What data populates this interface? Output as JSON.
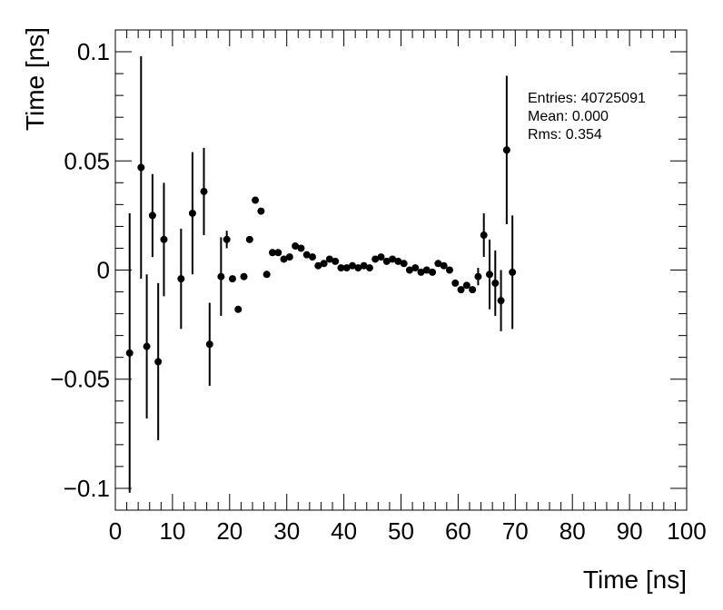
{
  "chart_data": {
    "type": "scatter",
    "title": "",
    "xlabel": "Time [ns]",
    "ylabel": "Time [ns]",
    "xlim": [
      0,
      100
    ],
    "ylim": [
      -0.11,
      0.11
    ],
    "grid": false,
    "x_ticks": [
      {
        "value": 0,
        "label": "0"
      },
      {
        "value": 10,
        "label": "10"
      },
      {
        "value": 20,
        "label": "20"
      },
      {
        "value": 30,
        "label": "30"
      },
      {
        "value": 40,
        "label": "40"
      },
      {
        "value": 50,
        "label": "50"
      },
      {
        "value": 60,
        "label": "60"
      },
      {
        "value": 70,
        "label": "70"
      },
      {
        "value": 80,
        "label": "80"
      },
      {
        "value": 90,
        "label": "90"
      },
      {
        "value": 100,
        "label": "100"
      }
    ],
    "y_ticks": [
      {
        "value": -0.1,
        "label": "−0.1"
      },
      {
        "value": -0.05,
        "label": "−0.05"
      },
      {
        "value": 0,
        "label": "0"
      },
      {
        "value": 0.05,
        "label": "0.05"
      },
      {
        "value": 0.1,
        "label": "0.1"
      }
    ],
    "stats": {
      "entries": "Entries: 40725091",
      "mean": "Mean: 0.000",
      "rms": "Rms: 0.354"
    },
    "series": [
      {
        "marker_color": "#000000",
        "points": [
          {
            "x": 2.5,
            "y": -0.038,
            "err": 0.064
          },
          {
            "x": 4.5,
            "y": 0.047,
            "err": 0.051
          },
          {
            "x": 5.5,
            "y": -0.035,
            "err": 0.033
          },
          {
            "x": 6.5,
            "y": 0.025,
            "err": 0.019
          },
          {
            "x": 7.5,
            "y": -0.042,
            "err": 0.036
          },
          {
            "x": 8.5,
            "y": 0.014,
            "err": 0.026
          },
          {
            "x": 11.5,
            "y": -0.004,
            "err": 0.023
          },
          {
            "x": 13.5,
            "y": 0.026,
            "err": 0.028
          },
          {
            "x": 15.5,
            "y": 0.036,
            "err": 0.02
          },
          {
            "x": 16.5,
            "y": -0.034,
            "err": 0.019
          },
          {
            "x": 18.5,
            "y": -0.003,
            "err": 0.018
          },
          {
            "x": 19.5,
            "y": 0.014,
            "err": 0.004
          },
          {
            "x": 20.5,
            "y": -0.004,
            "err": 0
          },
          {
            "x": 21.5,
            "y": -0.018,
            "err": 0
          },
          {
            "x": 22.5,
            "y": -0.003,
            "err": 0
          },
          {
            "x": 23.5,
            "y": 0.014,
            "err": 0
          },
          {
            "x": 24.5,
            "y": 0.032,
            "err": 0
          },
          {
            "x": 25.5,
            "y": 0.027,
            "err": 0
          },
          {
            "x": 26.5,
            "y": -0.002,
            "err": 0
          },
          {
            "x": 27.5,
            "y": 0.008,
            "err": 0
          },
          {
            "x": 28.5,
            "y": 0.008,
            "err": 0
          },
          {
            "x": 29.5,
            "y": 0.005,
            "err": 0
          },
          {
            "x": 30.5,
            "y": 0.006,
            "err": 0
          },
          {
            "x": 31.5,
            "y": 0.011,
            "err": 0
          },
          {
            "x": 32.5,
            "y": 0.01,
            "err": 0
          },
          {
            "x": 33.5,
            "y": 0.007,
            "err": 0
          },
          {
            "x": 34.5,
            "y": 0.006,
            "err": 0
          },
          {
            "x": 35.5,
            "y": 0.002,
            "err": 0
          },
          {
            "x": 36.5,
            "y": 0.003,
            "err": 0
          },
          {
            "x": 37.5,
            "y": 0.005,
            "err": 0
          },
          {
            "x": 38.5,
            "y": 0.004,
            "err": 0
          },
          {
            "x": 39.5,
            "y": 0.001,
            "err": 0
          },
          {
            "x": 40.5,
            "y": 0.001,
            "err": 0
          },
          {
            "x": 41.5,
            "y": 0.002,
            "err": 0
          },
          {
            "x": 42.5,
            "y": 0.001,
            "err": 0
          },
          {
            "x": 43.5,
            "y": 0.002,
            "err": 0
          },
          {
            "x": 44.5,
            "y": 0.001,
            "err": 0
          },
          {
            "x": 45.5,
            "y": 0.005,
            "err": 0
          },
          {
            "x": 46.5,
            "y": 0.006,
            "err": 0
          },
          {
            "x": 47.5,
            "y": 0.004,
            "err": 0
          },
          {
            "x": 48.5,
            "y": 0.005,
            "err": 0
          },
          {
            "x": 49.5,
            "y": 0.004,
            "err": 0
          },
          {
            "x": 50.5,
            "y": 0.003,
            "err": 0
          },
          {
            "x": 51.5,
            "y": 0.0,
            "err": 0
          },
          {
            "x": 52.5,
            "y": 0.001,
            "err": 0
          },
          {
            "x": 53.5,
            "y": -0.001,
            "err": 0
          },
          {
            "x": 54.5,
            "y": 0.0,
            "err": 0
          },
          {
            "x": 55.5,
            "y": -0.001,
            "err": 0
          },
          {
            "x": 56.5,
            "y": 0.003,
            "err": 0
          },
          {
            "x": 57.5,
            "y": 0.002,
            "err": 0
          },
          {
            "x": 58.5,
            "y": 0.0,
            "err": 0
          },
          {
            "x": 59.5,
            "y": -0.006,
            "err": 0
          },
          {
            "x": 60.5,
            "y": -0.009,
            "err": 0
          },
          {
            "x": 61.5,
            "y": -0.007,
            "err": 0
          },
          {
            "x": 62.5,
            "y": -0.009,
            "err": 0
          },
          {
            "x": 63.5,
            "y": -0.003,
            "err": 0.004
          },
          {
            "x": 64.5,
            "y": 0.016,
            "err": 0.01
          },
          {
            "x": 65.5,
            "y": -0.002,
            "err": 0.016
          },
          {
            "x": 66.5,
            "y": -0.006,
            "err": 0.015
          },
          {
            "x": 67.5,
            "y": -0.014,
            "err": 0.014
          },
          {
            "x": 68.5,
            "y": 0.055,
            "err": 0.034
          },
          {
            "x": 69.5,
            "y": -0.001,
            "err": 0.026
          }
        ]
      }
    ]
  }
}
